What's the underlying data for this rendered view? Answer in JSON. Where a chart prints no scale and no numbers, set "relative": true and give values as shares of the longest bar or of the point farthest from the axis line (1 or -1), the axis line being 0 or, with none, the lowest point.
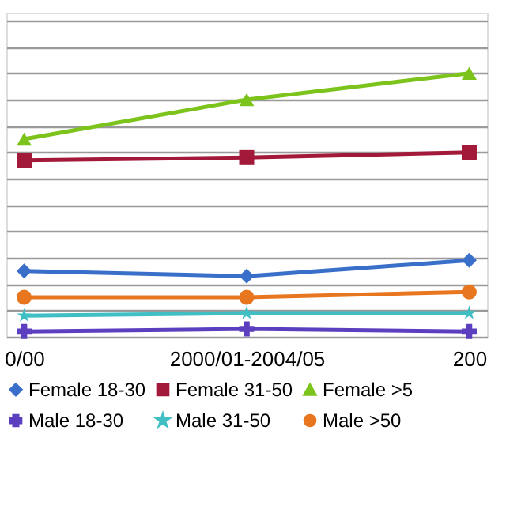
{
  "chart_data": {
    "type": "line",
    "relative": true,
    "categories": [
      "0/00",
      "2000/01-2004/05",
      "200"
    ],
    "grid": "y",
    "tick_labels": "x",
    "legend": "bottom",
    "line_style": "solid",
    "series": [
      {
        "name": "Female 18-30",
        "color": "#3a6fc9",
        "marker": "diamond",
        "values": [
          0.25,
          0.23,
          0.29
        ]
      },
      {
        "name": "Female 31-50",
        "color": "#a3193a",
        "marker": "square",
        "values": [
          0.67,
          0.68,
          0.7
        ]
      },
      {
        "name": "Female >5",
        "color": "#7cc41c",
        "marker": "triangle",
        "values": [
          0.75,
          0.9,
          1
        ]
      },
      {
        "name": "Male 18-30",
        "color": "#5b3fbf",
        "marker": "cross",
        "values": [
          0.02,
          0.03,
          0.02
        ]
      },
      {
        "name": "Male 31-50",
        "color": "#3fbfc4",
        "marker": "star",
        "values": [
          0.08,
          0.09,
          0.09
        ]
      },
      {
        "name": "Male >50",
        "color": "#e8761e",
        "marker": "circle",
        "values": [
          0.15,
          0.15,
          0.17
        ]
      }
    ]
  }
}
